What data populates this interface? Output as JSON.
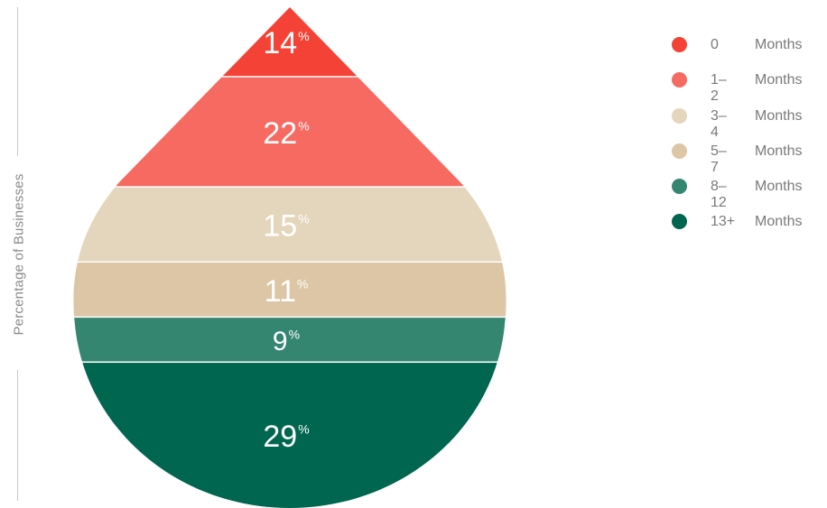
{
  "chart_data": {
    "type": "bar",
    "ylabel": "Percentage of Businesses",
    "percent_suffix": "%",
    "categories": [
      {
        "num": "0",
        "unit": "Months"
      },
      {
        "num": "1–2",
        "unit": "Months"
      },
      {
        "num": "3–4",
        "unit": "Months"
      },
      {
        "num": "5–7",
        "unit": "Months"
      },
      {
        "num": "8–12",
        "unit": "Months"
      },
      {
        "num": "13+",
        "unit": "Months"
      }
    ],
    "values": [
      14,
      22,
      15,
      11,
      9,
      29
    ],
    "colors": [
      "#f44336",
      "#f76a62",
      "#e4d6bc",
      "#dcc6a6",
      "#358670",
      "#006650"
    ],
    "legend_position": "top-right",
    "grid": false
  }
}
